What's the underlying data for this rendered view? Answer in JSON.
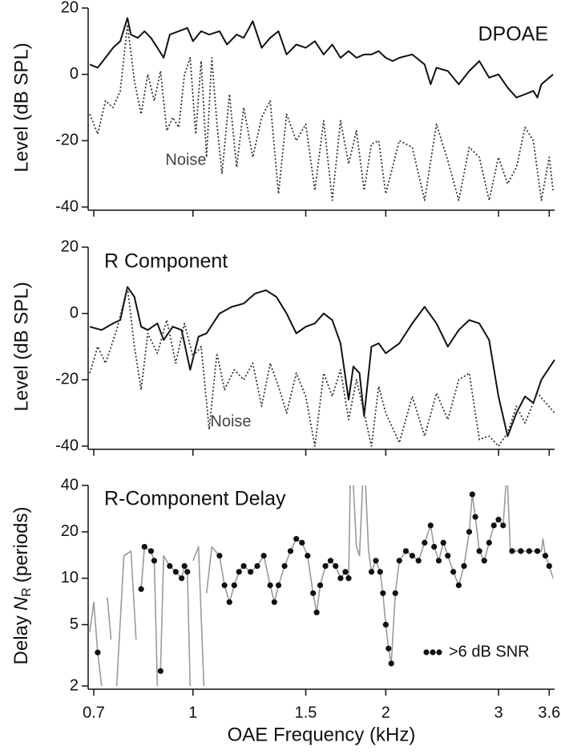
{
  "chart_data": [
    {
      "type": "line",
      "title": "DPOAE",
      "ylabel": "Level (dB SPL)",
      "annotation": "Noise",
      "xscale": "log",
      "xlim": [
        0.686,
        3.67
      ],
      "xticks": [
        0.7,
        1,
        1.5,
        2,
        3,
        3.6
      ],
      "show_xtick_labels": false,
      "ylim": [
        -40,
        20
      ],
      "yticks": [
        -40,
        -20,
        0,
        20
      ],
      "series": [
        {
          "style": "solid",
          "color": "#111111",
          "x": [
            0.69,
            0.71,
            0.73,
            0.75,
            0.77,
            0.79,
            0.8,
            0.82,
            0.84,
            0.86,
            0.88,
            0.9,
            0.92,
            0.95,
            0.98,
            1.0,
            1.03,
            1.06,
            1.1,
            1.13,
            1.17,
            1.2,
            1.24,
            1.28,
            1.32,
            1.36,
            1.4,
            1.45,
            1.5,
            1.55,
            1.6,
            1.65,
            1.7,
            1.75,
            1.8,
            1.85,
            1.9,
            1.95,
            2.0,
            2.05,
            2.1,
            2.2,
            2.3,
            2.35,
            2.4,
            2.5,
            2.6,
            2.7,
            2.8,
            2.9,
            3.0,
            3.1,
            3.2,
            3.3,
            3.4,
            3.45,
            3.5,
            3.6,
            3.65
          ],
          "values": [
            3,
            2,
            5,
            8,
            10,
            17,
            12,
            11,
            13,
            11,
            8,
            5,
            12,
            13,
            14,
            10,
            13,
            12,
            13,
            9,
            12,
            11,
            16,
            8,
            11,
            13,
            6,
            9,
            8,
            10,
            6,
            9,
            5,
            7,
            5,
            6,
            6,
            7,
            5,
            4,
            5,
            6,
            3,
            -3,
            2,
            1,
            -3,
            1,
            4,
            -1,
            0,
            -4,
            -7,
            -6,
            -5,
            -7,
            -3,
            -1,
            0
          ]
        },
        {
          "style": "dotted",
          "color": "#333333",
          "x": [
            0.69,
            0.71,
            0.73,
            0.75,
            0.77,
            0.79,
            0.81,
            0.83,
            0.85,
            0.87,
            0.89,
            0.91,
            0.93,
            0.95,
            0.97,
            0.99,
            1.01,
            1.03,
            1.05,
            1.07,
            1.09,
            1.11,
            1.14,
            1.17,
            1.2,
            1.24,
            1.28,
            1.32,
            1.36,
            1.4,
            1.45,
            1.5,
            1.55,
            1.6,
            1.65,
            1.7,
            1.75,
            1.8,
            1.85,
            1.9,
            1.95,
            2.0,
            2.1,
            2.2,
            2.3,
            2.4,
            2.5,
            2.6,
            2.7,
            2.8,
            2.9,
            3.0,
            3.1,
            3.2,
            3.3,
            3.4,
            3.5,
            3.6,
            3.65
          ],
          "values": [
            -12,
            -18,
            -8,
            -10,
            -5,
            15,
            -2,
            -12,
            0,
            -8,
            1,
            -17,
            -13,
            -16,
            0,
            5,
            -18,
            4,
            -25,
            5,
            -15,
            -30,
            -6,
            -28,
            -10,
            -25,
            -13,
            -8,
            -36,
            -12,
            -20,
            -15,
            -35,
            -14,
            -38,
            -14,
            -27,
            -17,
            -35,
            -21,
            -20,
            -36,
            -20,
            -22,
            -38,
            -15,
            -26,
            -38,
            -22,
            -25,
            -38,
            -25,
            -33,
            -28,
            -16,
            -20,
            -38,
            -25,
            -35
          ]
        }
      ]
    },
    {
      "type": "line",
      "title": "R Component",
      "ylabel": "Level (dB SPL)",
      "annotation": "Noise",
      "xscale": "log",
      "xlim": [
        0.686,
        3.67
      ],
      "xticks": [
        0.7,
        1,
        1.5,
        2,
        3,
        3.6
      ],
      "show_xtick_labels": false,
      "ylim": [
        -40,
        20
      ],
      "yticks": [
        -40,
        -20,
        0,
        20
      ],
      "series": [
        {
          "style": "solid",
          "color": "#111111",
          "x": [
            0.69,
            0.72,
            0.75,
            0.77,
            0.79,
            0.81,
            0.83,
            0.85,
            0.88,
            0.9,
            0.93,
            0.96,
            0.99,
            1.02,
            1.05,
            1.1,
            1.15,
            1.2,
            1.25,
            1.3,
            1.35,
            1.4,
            1.45,
            1.5,
            1.55,
            1.6,
            1.65,
            1.7,
            1.75,
            1.78,
            1.82,
            1.85,
            1.9,
            1.95,
            2.0,
            2.1,
            2.2,
            2.3,
            2.4,
            2.5,
            2.6,
            2.7,
            2.8,
            2.9,
            3.0,
            3.1,
            3.2,
            3.3,
            3.4,
            3.5,
            3.67
          ],
          "values": [
            -4,
            -5,
            -3,
            -2,
            8,
            5,
            -4,
            -5,
            -3,
            -8,
            -4,
            -5,
            -17,
            -7,
            -6,
            0,
            2,
            3,
            6,
            7,
            5,
            0,
            -6,
            -4,
            -3,
            0,
            -2,
            -9,
            -26,
            -16,
            -18,
            -31,
            -10,
            -9,
            -12,
            -9,
            -3,
            2,
            -3,
            -10,
            -5,
            -2,
            -3,
            -8,
            -25,
            -37,
            -30,
            -25,
            -27,
            -20,
            -14
          ]
        },
        {
          "style": "dotted",
          "color": "#333333",
          "x": [
            0.69,
            0.71,
            0.73,
            0.76,
            0.79,
            0.81,
            0.83,
            0.85,
            0.88,
            0.91,
            0.94,
            0.97,
            1.0,
            1.03,
            1.06,
            1.09,
            1.12,
            1.16,
            1.2,
            1.24,
            1.28,
            1.32,
            1.36,
            1.4,
            1.45,
            1.5,
            1.55,
            1.6,
            1.65,
            1.7,
            1.75,
            1.8,
            1.85,
            1.9,
            1.95,
            2.0,
            2.1,
            2.2,
            2.3,
            2.4,
            2.5,
            2.6,
            2.7,
            2.8,
            2.9,
            3.0,
            3.1,
            3.2,
            3.3,
            3.45,
            3.67
          ],
          "values": [
            -18,
            -10,
            -15,
            -5,
            8,
            -10,
            -23,
            -6,
            -12,
            -2,
            -15,
            -3,
            -13,
            -10,
            -35,
            -12,
            -23,
            -17,
            -20,
            -15,
            -28,
            -15,
            -22,
            -30,
            -18,
            -25,
            -40,
            -18,
            -25,
            -17,
            -32,
            -20,
            -30,
            -40,
            -22,
            -30,
            -39,
            -25,
            -37,
            -24,
            -32,
            -20,
            -18,
            -38,
            -37,
            -40,
            -36,
            -28,
            -33,
            -24,
            -30
          ]
        }
      ]
    },
    {
      "type": "line",
      "title": "R-Component Delay",
      "ylabel": "Delay",
      "ylabel_var": "N",
      "ylabel_sub": "R",
      "ylabel_unit": "(periods)",
      "xlabel": "OAE Frequency (kHz)",
      "xscale": "log",
      "xlim": [
        0.686,
        3.67
      ],
      "xticks": [
        0.7,
        1,
        1.5,
        2,
        3,
        3.6
      ],
      "show_xtick_labels": true,
      "yscale": "log",
      "ylim": [
        2,
        40
      ],
      "yticks": [
        2,
        5,
        10,
        20,
        40
      ],
      "legend": "lower right",
      "series": [
        {
          "style": "line",
          "color": "#9a9a9a",
          "x": [
            0.69,
            0.7,
            0.71,
            0.72,
            null,
            0.735,
            0.745,
            null,
            0.76,
            0.78,
            0.8,
            0.815,
            null,
            0.83,
            0.84,
            0.86,
            0.87,
            0.88,
            null,
            0.89,
            0.9,
            0.92,
            0.94,
            0.96,
            0.97,
            0.98,
            0.99,
            null,
            1.0,
            1.02,
            1.04,
            null,
            1.05,
            1.07,
            1.1,
            1.12,
            1.14,
            1.16,
            1.18,
            1.2,
            1.23,
            1.26,
            1.29,
            1.32,
            1.34,
            1.36,
            1.39,
            1.42,
            1.45,
            1.48,
            1.51,
            1.54,
            1.56,
            1.58,
            1.61,
            1.64,
            1.67,
            1.7,
            1.73,
            1.75,
            1.76,
            null,
            1.78,
            1.8,
            1.82,
            1.84,
            null,
            1.86,
            1.88,
            1.9,
            1.93,
            1.96,
            1.98,
            2.0,
            2.02,
            2.04,
            2.07,
            2.1,
            2.15,
            2.2,
            2.25,
            2.3,
            2.35,
            2.38,
            2.42,
            2.46,
            2.5,
            2.55,
            2.6,
            2.65,
            2.7,
            2.73,
            2.76,
            2.8,
            2.85,
            2.9,
            2.95,
            3.0,
            3.05,
            3.08,
            null,
            3.1,
            3.13,
            3.25,
            3.35,
            3.45,
            3.5,
            3.52,
            3.55,
            3.6,
            3.65
          ],
          "values": [
            4.5,
            7,
            3.3,
            2,
            null,
            7.5,
            4,
            null,
            2,
            14,
            15,
            4,
            null,
            8.5,
            16,
            15,
            13,
            2,
            null,
            2.5,
            14,
            12,
            11,
            10,
            12,
            11,
            2,
            null,
            13,
            16,
            2,
            null,
            8,
            16,
            14,
            9,
            7,
            9,
            11,
            12,
            11,
            12,
            14,
            9,
            7,
            9,
            12,
            15,
            18,
            17,
            14,
            8,
            6,
            9,
            12,
            13,
            12,
            10,
            11,
            10,
            40,
            null,
            40,
            16,
            14,
            40,
            null,
            40,
            15,
            11,
            13,
            11,
            8,
            5,
            3.5,
            2.8,
            8,
            13,
            15,
            14,
            13,
            17,
            22,
            16,
            13,
            17,
            14,
            11,
            9,
            12,
            20,
            35,
            25,
            15,
            13,
            17,
            22,
            24,
            22,
            40,
            null,
            40,
            15,
            15,
            15,
            15,
            15,
            18,
            14,
            12,
            10
          ]
        },
        {
          "style": "markers",
          "name": ">6 dB SNR",
          "color": "#111111",
          "x": [
            0.71,
            0.83,
            0.84,
            0.86,
            0.87,
            0.89,
            0.92,
            0.94,
            0.96,
            0.97,
            0.98,
            1.1,
            1.12,
            1.14,
            1.16,
            1.18,
            1.2,
            1.23,
            1.26,
            1.29,
            1.32,
            1.34,
            1.36,
            1.39,
            1.42,
            1.45,
            1.48,
            1.51,
            1.54,
            1.56,
            1.58,
            1.61,
            1.64,
            1.67,
            1.7,
            1.73,
            1.75,
            1.9,
            1.93,
            1.96,
            1.98,
            2.0,
            2.02,
            2.04,
            2.07,
            2.1,
            2.15,
            2.2,
            2.25,
            2.3,
            2.35,
            2.38,
            2.42,
            2.46,
            2.5,
            2.55,
            2.6,
            2.65,
            2.7,
            2.73,
            2.76,
            2.8,
            2.85,
            2.9,
            2.95,
            3.0,
            3.05,
            3.15,
            3.25,
            3.35,
            3.45,
            3.55,
            3.6
          ],
          "values": [
            3.3,
            8.5,
            16,
            15,
            13,
            2.5,
            12,
            11,
            10,
            12,
            11,
            14,
            9,
            7,
            9,
            11,
            12,
            11,
            12,
            14,
            9,
            7,
            9,
            12,
            15,
            18,
            17,
            14,
            8,
            6,
            9,
            12,
            13,
            12,
            10,
            11,
            10,
            11,
            13,
            11,
            8,
            5,
            3.5,
            2.8,
            8,
            13,
            15,
            14,
            13,
            17,
            22,
            16,
            13,
            17,
            14,
            11,
            9,
            12,
            20,
            35,
            25,
            15,
            13,
            17,
            22,
            24,
            22,
            15,
            15,
            15,
            15,
            14,
            12
          ]
        }
      ]
    }
  ]
}
